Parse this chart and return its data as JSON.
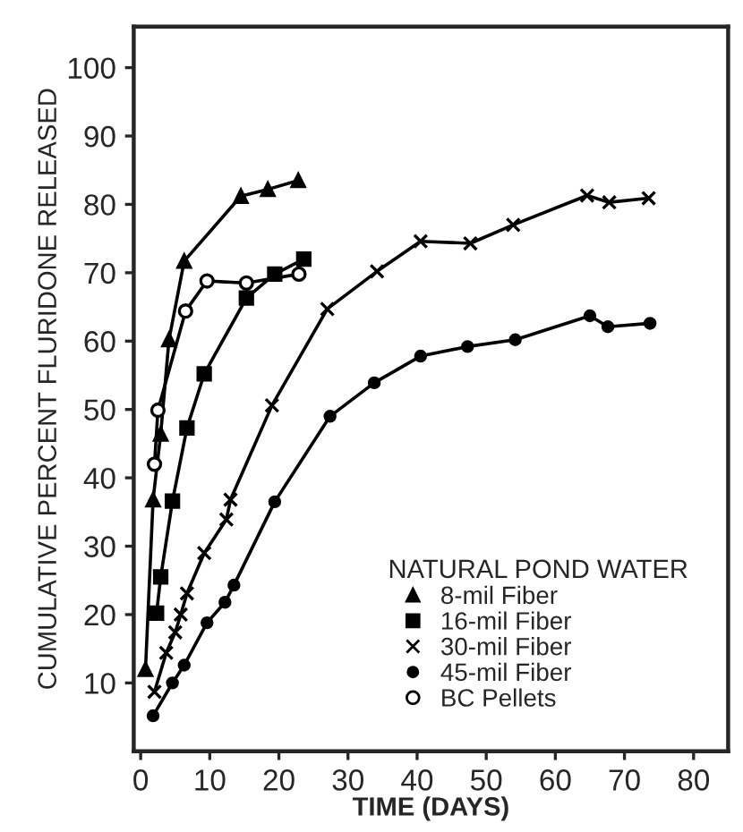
{
  "chart_data": {
    "type": "line",
    "xlabel": "TIME (DAYS)",
    "ylabel": "CUMULATIVE PERCENT FLURIDONE RELEASED",
    "legend_title": "NATURAL POND WATER",
    "legend": "bottom right",
    "grid": false,
    "xlim": [
      -1,
      85
    ],
    "ylim": [
      0,
      106
    ],
    "xticks": [
      0,
      10,
      20,
      30,
      40,
      50,
      60,
      70,
      80
    ],
    "yticks": [
      10,
      20,
      30,
      40,
      50,
      60,
      70,
      80,
      90,
      100
    ],
    "series": [
      {
        "name": "8-mil Fiber",
        "color": "#000000",
        "marker": "triangle",
        "x": [
          0.7,
          1.8,
          2.9,
          4.1,
          6.3,
          14.5,
          18.4,
          22.8
        ],
        "values": [
          12,
          36.8,
          46.4,
          60.2,
          71.7,
          81.2,
          82.2,
          83.5
        ]
      },
      {
        "name": "16-mil Fiber",
        "color": "#000000",
        "marker": "square",
        "x": [
          2.3,
          2.9,
          4.6,
          6.7,
          9.2,
          15.3,
          19.4,
          23.6
        ],
        "values": [
          20.2,
          25.5,
          36.6,
          47.3,
          55.2,
          66.3,
          69.8,
          72
        ]
      },
      {
        "name": "30-mil Fiber",
        "color": "#000000",
        "marker": "cross",
        "x": [
          2,
          3.7,
          5,
          5.8,
          6.7,
          9.2,
          12.4,
          13,
          19,
          27,
          34.2,
          40.5,
          47.7,
          53.9,
          64.6,
          67.8,
          73.5
        ],
        "values": [
          8.7,
          14.4,
          17.4,
          20,
          23.1,
          29,
          33.9,
          36.8,
          50.6,
          64.7,
          70.2,
          74.6,
          74.3,
          77,
          81.3,
          80.3,
          80.9
        ]
      },
      {
        "name": "45-mil Fiber",
        "color": "#000000",
        "marker": "circle",
        "x": [
          1.8,
          4.6,
          6.3,
          9.6,
          12.2,
          13.5,
          19.4,
          27.4,
          33.8,
          40.5,
          47.3,
          54.2,
          65,
          67.6,
          73.7
        ],
        "values": [
          5.2,
          10,
          12.6,
          18.8,
          21.8,
          24.3,
          36.5,
          49,
          53.9,
          57.8,
          59.2,
          60.2,
          63.7,
          62.1,
          62.6
        ]
      },
      {
        "name": "BC Pellets",
        "color": "#ffffff",
        "marker": "circle",
        "x": [
          2,
          2.5,
          6.5,
          9.6,
          15.3,
          22.9
        ],
        "values": [
          42,
          49.9,
          64.4,
          68.8,
          68.5,
          69.8
        ]
      }
    ]
  }
}
